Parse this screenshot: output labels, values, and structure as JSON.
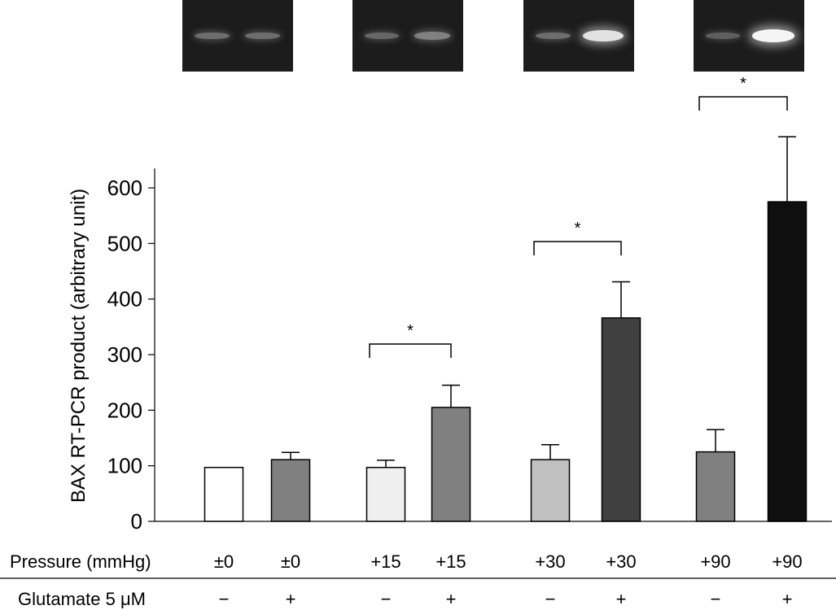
{
  "chart_data": {
    "type": "bar",
    "ylabel": "BAX RT-PCR product (arbitrary unit)",
    "ylim": [
      0,
      600
    ],
    "yticks": [
      0,
      100,
      200,
      300,
      400,
      500,
      600
    ],
    "categories": [
      "±0 −",
      "±0 +",
      "+15 −",
      "+15 +",
      "+30 −",
      "+30 +",
      "+90 −",
      "+90 +"
    ],
    "bars": [
      {
        "pressure": "±0",
        "glutamate": "−",
        "value": 97,
        "error": 0,
        "color": "#ffffff"
      },
      {
        "pressure": "±0",
        "glutamate": "+",
        "value": 111,
        "error": 13,
        "color": "#808080"
      },
      {
        "pressure": "+15",
        "glutamate": "−",
        "value": 97,
        "error": 13,
        "color": "#efefef"
      },
      {
        "pressure": "+15",
        "glutamate": "+",
        "value": 205,
        "error": 40,
        "color": "#808080"
      },
      {
        "pressure": "+30",
        "glutamate": "−",
        "value": 111,
        "error": 27,
        "color": "#c0c0c0"
      },
      {
        "pressure": "+30",
        "glutamate": "+",
        "value": 366,
        "error": 65,
        "color": "#404040"
      },
      {
        "pressure": "+90",
        "glutamate": "−",
        "value": 125,
        "error": 40,
        "color": "#808080"
      },
      {
        "pressure": "+90",
        "glutamate": "+",
        "value": 575,
        "error": 117,
        "color": "#0f0f0f"
      }
    ],
    "significance": [
      {
        "from": 2,
        "to": 3,
        "label": "*"
      },
      {
        "from": 4,
        "to": 5,
        "label": "*"
      },
      {
        "from": 6,
        "to": 7,
        "label": "*"
      }
    ],
    "row_labels": {
      "pressure": "Pressure (mmHg)",
      "glutamate": "Glutamate 5 μM"
    },
    "gel_bands": [
      {
        "minus": 0.25,
        "plus": 0.25
      },
      {
        "minus": 0.22,
        "plus": 0.35
      },
      {
        "minus": 0.25,
        "plus": 0.85
      },
      {
        "minus": 0.18,
        "plus": 0.95
      }
    ]
  }
}
